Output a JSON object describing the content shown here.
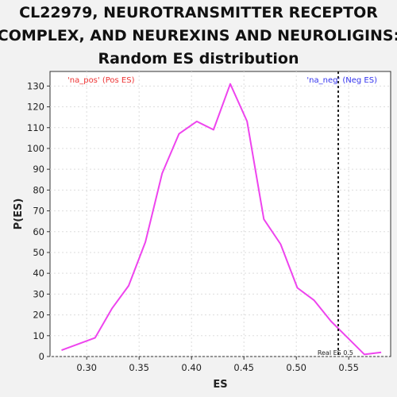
{
  "chart_data": {
    "type": "line",
    "title_lines": [
      "CL22979, NEUROTRANSMITTER RECEPTOR",
      "COMPLEX, AND NEUREXINS AND NEUROLIGINS:",
      "Random ES distribution"
    ],
    "xlabel": "ES",
    "ylabel": "P(ES)",
    "xlim": [
      0.265,
      0.59
    ],
    "ylim": [
      0,
      137
    ],
    "xticks": [
      0.3,
      0.35,
      0.4,
      0.45,
      0.5,
      0.55
    ],
    "xtick_labels": [
      "0.30",
      "0.35",
      "0.40",
      "0.45",
      "0.50",
      "0.55"
    ],
    "yticks": [
      0,
      10,
      20,
      30,
      40,
      50,
      60,
      70,
      80,
      90,
      100,
      110,
      120,
      130
    ],
    "yticks_labels": [
      "0",
      "10",
      "20",
      "30",
      "40",
      "50",
      "60",
      "70",
      "80",
      "90",
      "100",
      "110",
      "120",
      "130"
    ],
    "grid": true,
    "series": [
      {
        "color": "#ee44ee",
        "x": [
          0.276,
          0.308,
          0.324,
          0.34,
          0.356,
          0.372,
          0.388,
          0.405,
          0.421,
          0.437,
          0.453,
          0.469,
          0.485,
          0.501,
          0.517,
          0.533,
          0.549,
          0.565,
          0.581
        ],
        "y": [
          3,
          9,
          23,
          34,
          55,
          88,
          107,
          113,
          109,
          131,
          113,
          66,
          54,
          33,
          27,
          17,
          9,
          1,
          2
        ]
      }
    ],
    "real_es": {
      "x": 0.54,
      "label": "Real ES 0.5",
      "color": "#222222"
    },
    "annotations": {
      "pos_label": "'na_pos' (Pos ES)",
      "pos_color": "#ee3333",
      "neg_label": "'na_neg' (Neg ES)",
      "neg_color": "#3333ee"
    },
    "colors": {
      "background": "#f2f2f2",
      "plot_background": "#ffffff",
      "grid": "#dddddd"
    }
  }
}
